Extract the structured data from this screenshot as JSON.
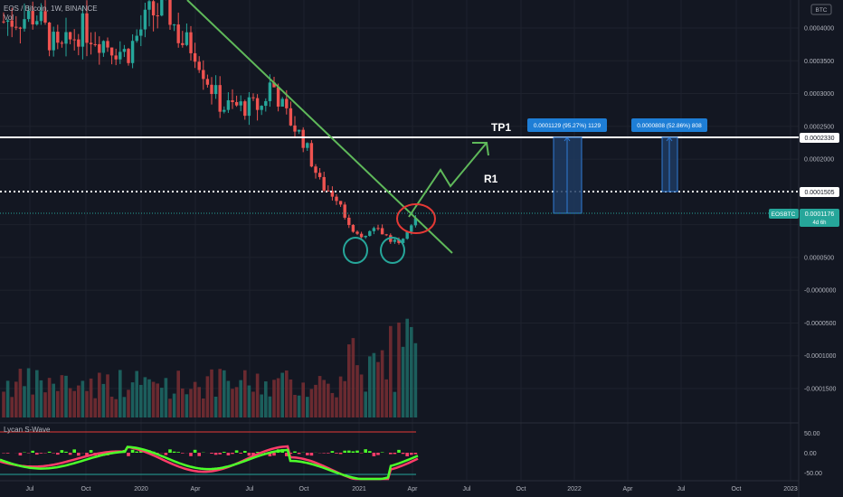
{
  "header": {
    "symbol_line": "EOS / Bitcoin, 1W, BINANCE",
    "volume_label": "Vol"
  },
  "currency_badge": "BTC",
  "indicator": {
    "name": "Lycan S-Wave",
    "levels": [
      "50.00",
      "0.00",
      "-50.00"
    ]
  },
  "price_tag": {
    "symbol": "EOSBTC",
    "value": "0.0001176",
    "countdown": "4d 6h"
  },
  "level_tags": {
    "tp1_value": "0.0002330",
    "r1_value": "0.0001505"
  },
  "annotations": {
    "tp1": "TP1",
    "r1": "R1"
  },
  "measure_boxes": [
    {
      "label": "0.0001129 (95.27%) 1129"
    },
    {
      "label": "0.0000808 (52.86%) 808"
    }
  ],
  "colors": {
    "background": "#131722",
    "up": "#26a69a",
    "down": "#ef5350",
    "trendline": "#5fb95a",
    "tag_blue": "#2962ff",
    "measure_blue": "#1e7ed6"
  },
  "chart_data": {
    "type": "candlestick",
    "y_axis": {
      "ticks": [
        "0.0004000",
        "0.0003500",
        "0.0003000",
        "0.0002500",
        "0.0002000",
        "0.0001000",
        "0.0000500",
        "-0.0000000",
        "-0.0000500",
        "-0.0001000",
        "-0.0001500"
      ],
      "values": [
        0.0004,
        0.00035,
        0.0003,
        0.00025,
        0.0002,
        0.0001,
        5e-05,
        0,
        -5e-05,
        -0.0001,
        -0.00015
      ]
    },
    "x_axis": {
      "ticks": [
        "Jul",
        "Oct",
        "2020",
        "Apr",
        "Jul",
        "Oct",
        "2021",
        "Apr",
        "Jul",
        "Oct",
        "2022",
        "Apr",
        "Jul",
        "Oct",
        "2023"
      ]
    },
    "levels": {
      "tp1": 0.000233,
      "r1": 0.0001505,
      "last": 0.0001176
    },
    "projection_targets": [
      0.0001129,
      8.08e-05
    ]
  }
}
